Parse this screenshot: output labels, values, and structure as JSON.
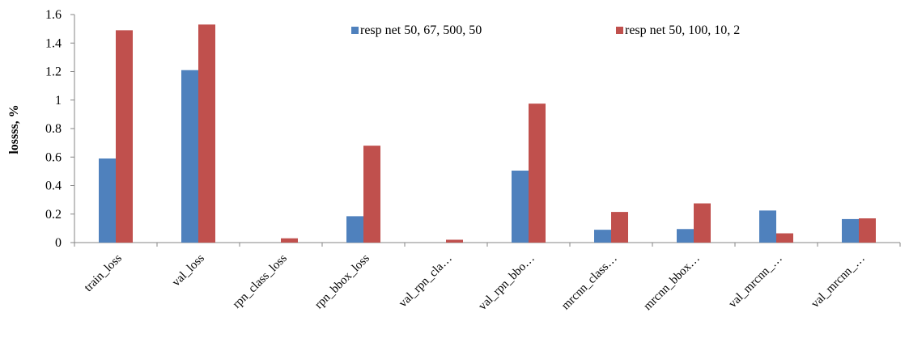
{
  "chart_data": {
    "type": "bar",
    "title": "",
    "xlabel": "",
    "ylabel": "lossss, %",
    "ylim": [
      0,
      1.6
    ],
    "yticks": [
      "0",
      "0.2",
      "0.4",
      "0.6",
      "0.8",
      "1",
      "1.2",
      "1.4",
      "1.6"
    ],
    "grid": false,
    "legend_position": "top",
    "categories": [
      "train_loss",
      "val_loss",
      "rpn_class_loss",
      "rpn_bbox_loss",
      "val_rpn_cla…",
      "val_rpn_bbo…",
      "mrcnn_class…",
      "mrcnn_bbox…",
      "val_mrcnn_…",
      "val_mrcnn_…"
    ],
    "series": [
      {
        "name": "resp net 50, 67, 500, 50",
        "color": "#4f81bd",
        "values": [
          0.59,
          1.21,
          0.0,
          0.185,
          0.0,
          0.505,
          0.09,
          0.095,
          0.225,
          0.165
        ]
      },
      {
        "name": "resp net 50, 100, 10, 2",
        "color": "#c0504d",
        "values": [
          1.49,
          1.53,
          0.03,
          0.68,
          0.02,
          0.975,
          0.215,
          0.275,
          0.065,
          0.17
        ]
      }
    ]
  }
}
